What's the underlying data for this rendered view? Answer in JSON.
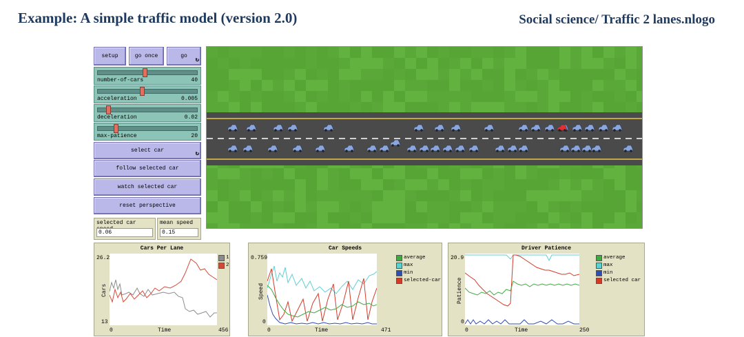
{
  "slide": {
    "title": "Example: A simple traffic model (version 2.0)",
    "file": "Social science/ Traffic 2 lanes.nlogo"
  },
  "buttons": {
    "setup": "setup",
    "go_once": "go once",
    "go": "go",
    "select_car": "select car",
    "follow": "follow selected car",
    "watch": "watch selected car",
    "reset": "reset perspective"
  },
  "sliders": [
    {
      "name": "number-of-cars",
      "value": "40",
      "fraction": 0.45
    },
    {
      "name": "acceleration",
      "value": "0.005",
      "fraction": 0.43
    },
    {
      "name": "deceleration",
      "value": "0.02",
      "fraction": 0.1
    },
    {
      "name": "max-patience",
      "value": "20",
      "fraction": 0.18
    }
  ],
  "monitors": [
    {
      "label": "selected car speed",
      "value": "0.06"
    },
    {
      "label": "mean speed",
      "value": "0.15"
    }
  ],
  "colors": {
    "grass": "#5fae3c",
    "road": "#4a4a4a",
    "car": "#8aa6dd",
    "selected_car": "#e03030",
    "btn": "#b9b8e8",
    "slider": "#8cc4b8",
    "panel": "#e4e2c4"
  },
  "plots": {
    "cars_per_lane": {
      "title": "Cars Per Lane",
      "ylabel": "Cars",
      "xlabel": "Time",
      "ymin": "13",
      "ymax": "26.2",
      "xmin": "0",
      "xmax": "456",
      "legend": [
        {
          "name": "1",
          "color": "#8c8c8c"
        },
        {
          "name": "2",
          "color": "#d24a3a"
        }
      ]
    },
    "car_speeds": {
      "title": "Car Speeds",
      "ylabel": "Speed",
      "xlabel": "Time",
      "ymin": "0",
      "ymax": "0.759",
      "xmin": "0",
      "xmax": "471",
      "legend": [
        {
          "name": "average",
          "color": "#3faa3f"
        },
        {
          "name": "max",
          "color": "#5fd0d0"
        },
        {
          "name": "min",
          "color": "#2f4fb0"
        },
        {
          "name": "selected-car",
          "color": "#d23a2a"
        }
      ]
    },
    "driver_patience": {
      "title": "Driver Patience",
      "ylabel": "Patience",
      "xlabel": "Time",
      "ymin": "0",
      "ymax": "20.9",
      "xmin": "0",
      "xmax": "250",
      "legend": [
        {
          "name": "average",
          "color": "#3faa3f"
        },
        {
          "name": "max",
          "color": "#5fd0d0"
        },
        {
          "name": "min",
          "color": "#2f4fb0"
        },
        {
          "name": "selected car",
          "color": "#d23a2a"
        }
      ]
    }
  }
}
